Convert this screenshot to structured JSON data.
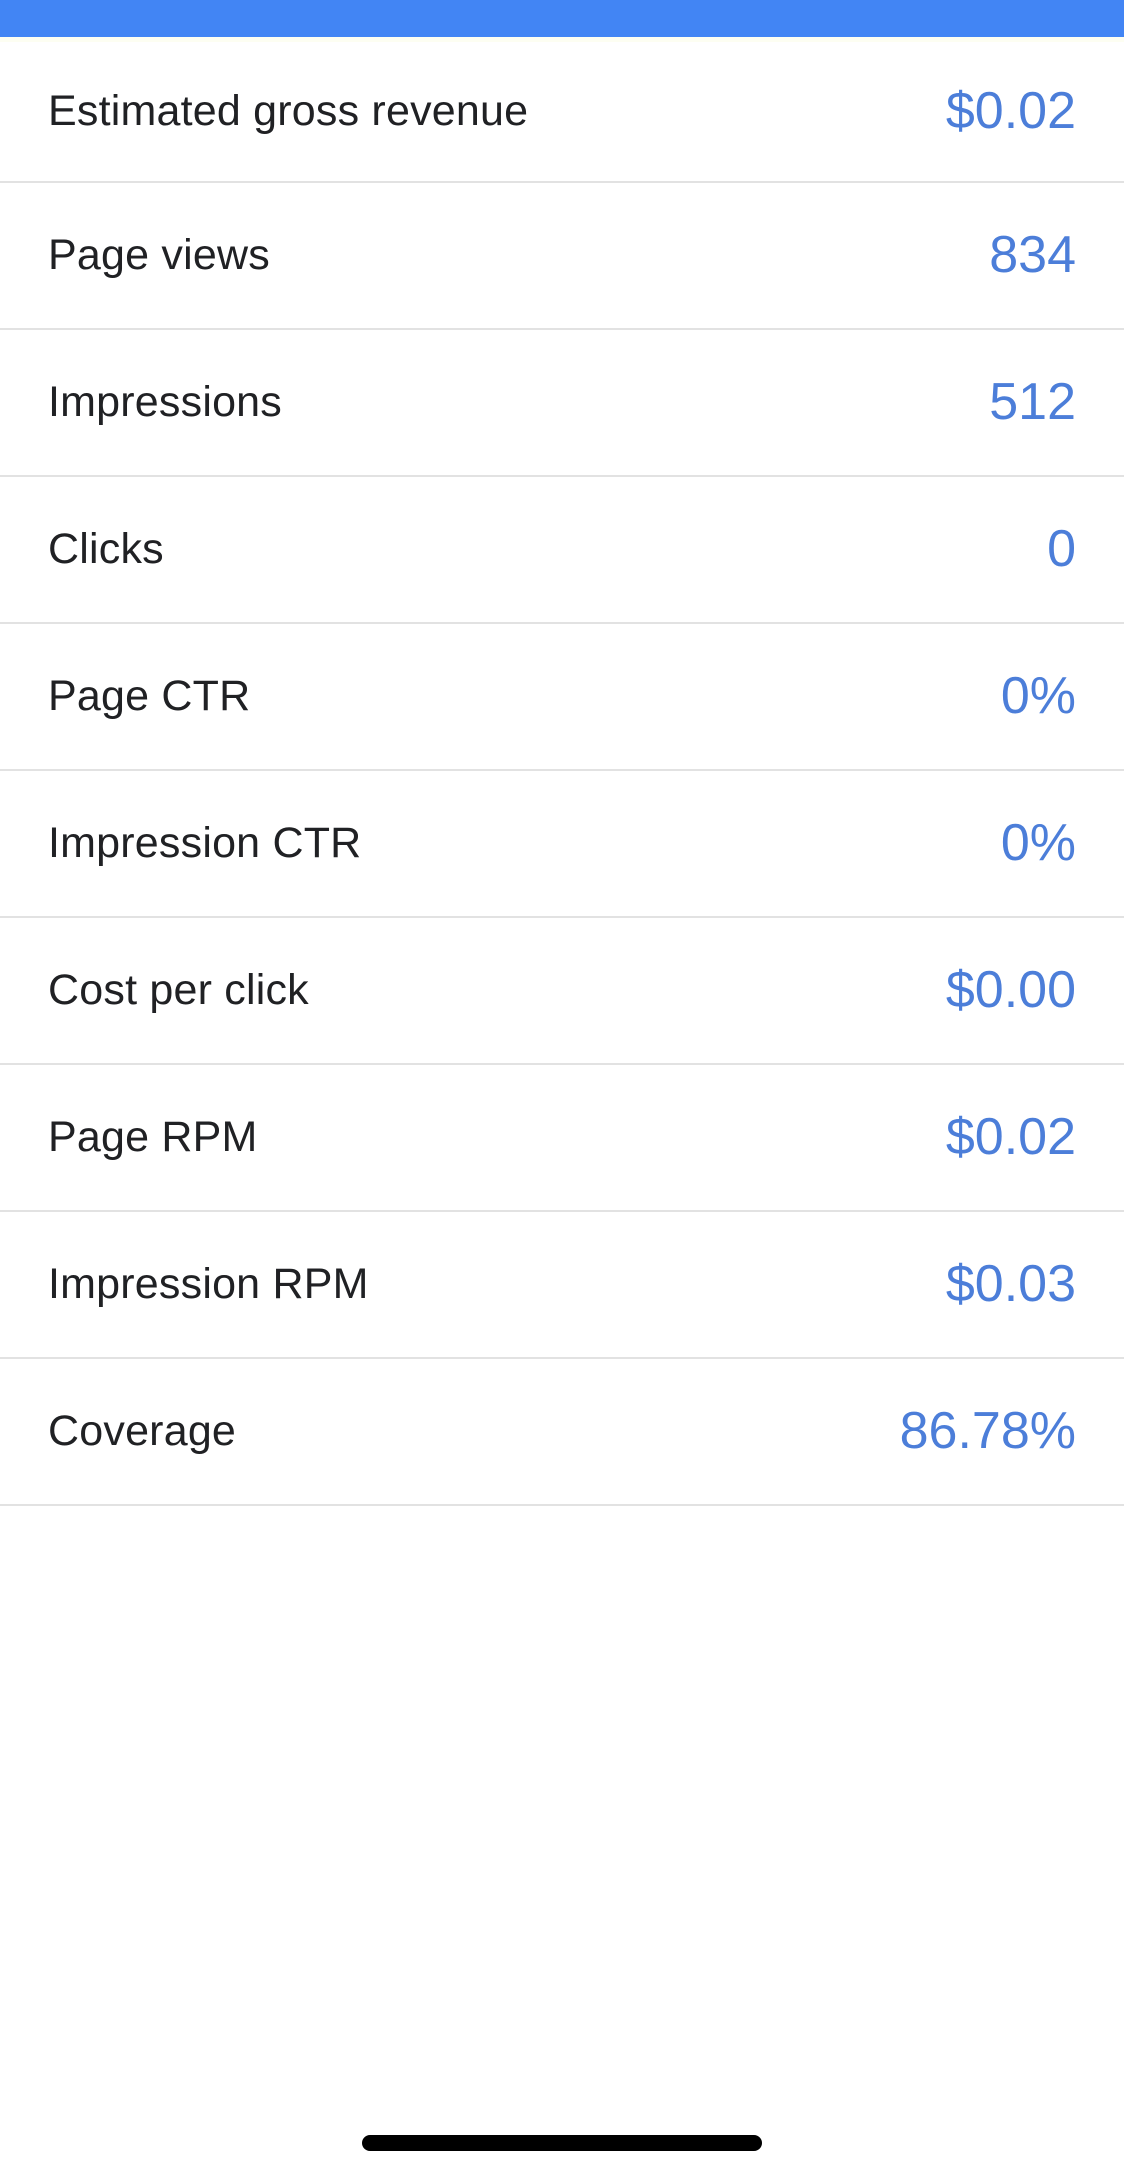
{
  "colors": {
    "status_bar": "#4285F4",
    "value_text": "#4C7ED9",
    "label_text": "#202124",
    "divider": "#E2E2E2",
    "home_indicator": "#000000"
  },
  "metrics": [
    {
      "label": "Estimated gross revenue",
      "value": "$0.02"
    },
    {
      "label": "Page views",
      "value": "834"
    },
    {
      "label": "Impressions",
      "value": "512"
    },
    {
      "label": "Clicks",
      "value": "0"
    },
    {
      "label": "Page CTR",
      "value": "0%"
    },
    {
      "label": "Impression CTR",
      "value": "0%"
    },
    {
      "label": "Cost per click",
      "value": "$0.00"
    },
    {
      "label": "Page RPM",
      "value": "$0.02"
    },
    {
      "label": "Impression RPM",
      "value": "$0.03"
    },
    {
      "label": "Coverage",
      "value": "86.78%"
    }
  ]
}
